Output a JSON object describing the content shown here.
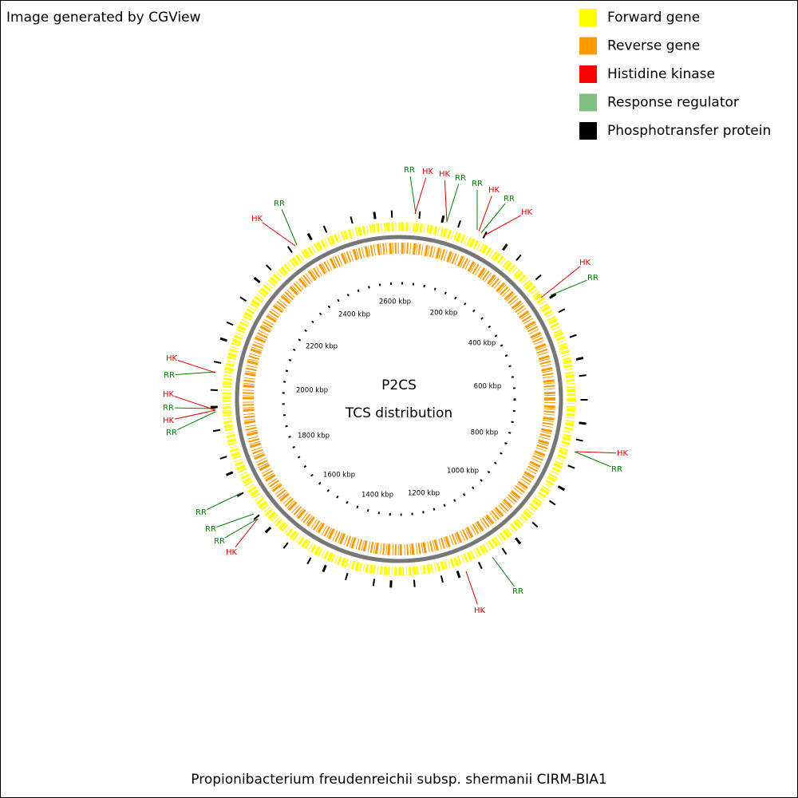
{
  "header": {
    "title": "Image generated by CGView"
  },
  "legend": {
    "items": [
      {
        "label": "Forward gene",
        "color": "#ffff00"
      },
      {
        "label": "Reverse gene",
        "color": "#ff9900"
      },
      {
        "label": "Histidine kinase",
        "color": "#ff0000"
      },
      {
        "label": "Response regulator",
        "color": "#80c080"
      },
      {
        "label": "Phosphotransfer protein",
        "color": "#000000"
      }
    ]
  },
  "map": {
    "title": "P2CS",
    "subtitle": "TCS distribution",
    "ticks": [
      "200 kbp",
      "400 kbp",
      "600 kbp",
      "800 kbp",
      "1000 kbp",
      "1200 kbp",
      "1400 kbp",
      "1600 kbp",
      "1800 kbp",
      "2000 kbp",
      "2200 kbp",
      "2400 kbp",
      "2600 kbp"
    ],
    "features": [
      "RR",
      "HK",
      "HK",
      "RR",
      "RR",
      "HK",
      "RR",
      "HK",
      "HK",
      "RR",
      "HK",
      "RR",
      "RR",
      "HK",
      "HK",
      "RR",
      "RR",
      "RR",
      "RR",
      "HK",
      "RR",
      "HK",
      "RR",
      "HK",
      "HK",
      "RR"
    ]
  },
  "footer": {
    "title": "Propionibacterium freudenreichii subsp. shermanii CIRM-BIA1"
  }
}
